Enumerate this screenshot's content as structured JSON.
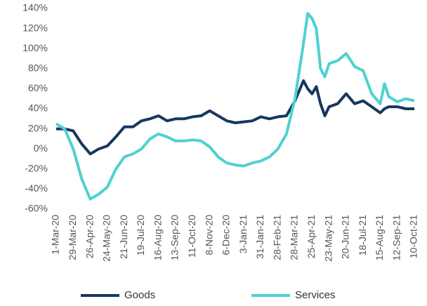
{
  "chart_data": {
    "type": "line",
    "x": [
      "2020-03-01",
      "2020-03-15",
      "2020-03-29",
      "2020-04-12",
      "2020-04-26",
      "2020-05-10",
      "2020-05-24",
      "2020-06-07",
      "2020-06-21",
      "2020-07-05",
      "2020-07-19",
      "2020-08-02",
      "2020-08-16",
      "2020-08-30",
      "2020-09-13",
      "2020-09-27",
      "2020-10-11",
      "2020-10-25",
      "2020-11-08",
      "2020-11-22",
      "2020-12-06",
      "2020-12-20",
      "2021-01-03",
      "2021-01-17",
      "2021-01-31",
      "2021-02-14",
      "2021-02-28",
      "2021-03-14",
      "2021-03-28",
      "2021-04-11",
      "2021-04-18",
      "2021-04-25",
      "2021-05-02",
      "2021-05-09",
      "2021-05-16",
      "2021-05-23",
      "2021-06-06",
      "2021-06-20",
      "2021-07-04",
      "2021-07-18",
      "2021-08-01",
      "2021-08-15",
      "2021-08-22",
      "2021-08-29",
      "2021-09-12",
      "2021-09-26",
      "2021-10-10"
    ],
    "series": [
      {
        "name": "Goods",
        "color": "#17375e",
        "values": [
          20,
          20,
          18,
          5,
          -5,
          0,
          3,
          12,
          22,
          22,
          28,
          30,
          33,
          28,
          30,
          30,
          32,
          33,
          38,
          33,
          28,
          26,
          27,
          28,
          32,
          30,
          32,
          33,
          48,
          68,
          60,
          55,
          62,
          45,
          33,
          42,
          45,
          55,
          45,
          48,
          42,
          36,
          40,
          42,
          42,
          40,
          40
        ]
      },
      {
        "name": "Services",
        "color": "#4fd1d0",
        "values": [
          25,
          20,
          0,
          -30,
          -50,
          -45,
          -38,
          -20,
          -8,
          -5,
          0,
          10,
          15,
          12,
          8,
          8,
          9,
          8,
          2,
          -8,
          -14,
          -16,
          -17,
          -14,
          -12,
          -8,
          0,
          15,
          50,
          105,
          135,
          130,
          120,
          80,
          72,
          85,
          88,
          95,
          82,
          78,
          55,
          45,
          65,
          52,
          47,
          50,
          48
        ]
      }
    ],
    "xlim": [
      "2020-03-01",
      "2021-10-10"
    ],
    "xticks": [
      {
        "value": "2020-03-01",
        "label": "1-Mar-20"
      },
      {
        "value": "2020-03-29",
        "label": "29-Mar-20"
      },
      {
        "value": "2020-04-26",
        "label": "26-Apr-20"
      },
      {
        "value": "2020-05-24",
        "label": "24-May-20"
      },
      {
        "value": "2020-06-21",
        "label": "21-Jun-20"
      },
      {
        "value": "2020-07-19",
        "label": "19-Jul-20"
      },
      {
        "value": "2020-08-16",
        "label": "16-Aug-20"
      },
      {
        "value": "2020-09-13",
        "label": "13-Sep-20"
      },
      {
        "value": "2020-10-11",
        "label": "11-Oct-20"
      },
      {
        "value": "2020-11-08",
        "label": "8-Nov-20"
      },
      {
        "value": "2020-12-06",
        "label": "6-Dec-20"
      },
      {
        "value": "2021-01-03",
        "label": "3-Jan-21"
      },
      {
        "value": "2021-01-31",
        "label": "31-Jan-21"
      },
      {
        "value": "2021-02-28",
        "label": "28-Feb-21"
      },
      {
        "value": "2021-03-28",
        "label": "28-Mar-21"
      },
      {
        "value": "2021-04-25",
        "label": "25-Apr-21"
      },
      {
        "value": "2021-05-23",
        "label": "23-May-21"
      },
      {
        "value": "2021-06-20",
        "label": "20-Jun-21"
      },
      {
        "value": "2021-07-18",
        "label": "18-Jul-21"
      },
      {
        "value": "2021-08-15",
        "label": "15-Aug-21"
      },
      {
        "value": "2021-09-12",
        "label": "12-Sep-21"
      },
      {
        "value": "2021-10-10",
        "label": "10-Oct-21"
      }
    ],
    "ylim": [
      -60,
      140
    ],
    "yticks": [
      {
        "value": -60,
        "label": "-60%"
      },
      {
        "value": -40,
        "label": "-40%"
      },
      {
        "value": -20,
        "label": "-20%"
      },
      {
        "value": 0,
        "label": "0%"
      },
      {
        "value": 20,
        "label": "20%"
      },
      {
        "value": 40,
        "label": "40%"
      },
      {
        "value": 60,
        "label": "60%"
      },
      {
        "value": 80,
        "label": "80%"
      },
      {
        "value": 100,
        "label": "100%"
      },
      {
        "value": 120,
        "label": "120%"
      },
      {
        "value": 140,
        "label": "140%"
      }
    ],
    "grid": false,
    "legend": "bottom"
  }
}
